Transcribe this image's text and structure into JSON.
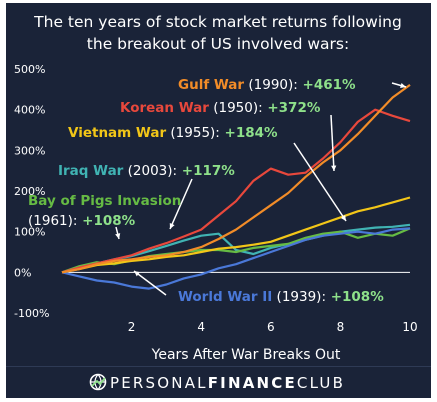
{
  "chart_data": {
    "type": "line",
    "title": "The ten years of stock market returns following the breakout of US involved wars:",
    "title_lines": [
      "The ten years of stock market returns following",
      "the breakout of US involved wars:"
    ],
    "xlabel": "Years After War Breaks Out",
    "ylabel": "",
    "xlim": [
      0,
      10
    ],
    "ylim": [
      -100,
      500
    ],
    "x_ticks": [
      2,
      4,
      6,
      8,
      10
    ],
    "x_tick_labels": [
      "2",
      "4",
      "6",
      "8",
      "10"
    ],
    "y_ticks": [
      -100,
      0,
      100,
      200,
      300,
      400,
      500
    ],
    "y_tick_labels": [
      "-100%",
      "0%",
      "100%",
      "200%",
      "300%",
      "400%",
      "500%"
    ],
    "grid": false,
    "legend": "none (series labelled directly on the chart)",
    "series": [
      {
        "name": "Gulf War",
        "year": "(1990):",
        "return": "+461%",
        "color": "#f28c28",
        "x": [
          0,
          0.5,
          1,
          1.5,
          2,
          2.5,
          3,
          3.5,
          4,
          4.5,
          5,
          5.5,
          6,
          6.5,
          7,
          7.5,
          8,
          8.5,
          9,
          9.5,
          10
        ],
        "y": [
          0,
          8,
          20,
          28,
          32,
          38,
          42,
          50,
          62,
          82,
          105,
          135,
          165,
          195,
          235,
          270,
          300,
          340,
          385,
          430,
          461
        ]
      },
      {
        "name": "Korean War",
        "year": "(1950):",
        "return": "+372%",
        "color": "#e8483c",
        "x": [
          0,
          0.5,
          1,
          1.5,
          2,
          2.5,
          3,
          3.5,
          4,
          4.5,
          5,
          5.5,
          6,
          6.5,
          7,
          7.5,
          8,
          8.5,
          9,
          9.5,
          10
        ],
        "y": [
          0,
          12,
          22,
          32,
          42,
          58,
          72,
          88,
          105,
          140,
          175,
          225,
          255,
          240,
          245,
          280,
          320,
          370,
          400,
          385,
          372
        ]
      },
      {
        "name": "Vietnam War",
        "year": "(1955):",
        "return": "+184%",
        "color": "#f2c618",
        "x": [
          0,
          0.5,
          1,
          1.5,
          2,
          2.5,
          3,
          3.5,
          4,
          4.5,
          5,
          5.5,
          6,
          6.5,
          7,
          7.5,
          8,
          8.5,
          9,
          9.5,
          10
        ],
        "y": [
          0,
          8,
          18,
          22,
          28,
          32,
          38,
          42,
          50,
          58,
          62,
          68,
          75,
          90,
          105,
          120,
          135,
          150,
          160,
          172,
          184
        ]
      },
      {
        "name": "Iraq War",
        "year": "(2003):",
        "return": "+117%",
        "color": "#40b3b3",
        "x": [
          0,
          0.5,
          1,
          1.5,
          2,
          2.5,
          3,
          3.5,
          4,
          4.5,
          5,
          5.5,
          6,
          6.5,
          7,
          7.5,
          8,
          8.5,
          9,
          9.5,
          10
        ],
        "y": [
          0,
          10,
          22,
          32,
          40,
          52,
          65,
          78,
          90,
          95,
          55,
          45,
          60,
          70,
          80,
          90,
          100,
          105,
          110,
          112,
          117
        ]
      },
      {
        "name": "Bay of Pigs Invasion",
        "year": "(1961):",
        "return": "+108%",
        "color": "#66bb44",
        "x": [
          0,
          0.5,
          1,
          1.5,
          2,
          2.5,
          3,
          3.5,
          4,
          4.5,
          5,
          5.5,
          6,
          6.5,
          7,
          7.5,
          8,
          8.5,
          9,
          9.5,
          10
        ],
        "y": [
          0,
          15,
          25,
          20,
          30,
          40,
          45,
          50,
          55,
          55,
          50,
          60,
          65,
          70,
          85,
          95,
          100,
          85,
          95,
          90,
          108
        ]
      },
      {
        "name": "World War II",
        "year": "(1939):",
        "return": "+108%",
        "color": "#4a78d8",
        "x": [
          0,
          0.5,
          1,
          1.5,
          2,
          2.5,
          3,
          3.5,
          4,
          4.5,
          5,
          5.5,
          6,
          6.5,
          7,
          7.5,
          8,
          8.5,
          9,
          9.5,
          10
        ],
        "y": [
          0,
          -10,
          -20,
          -25,
          -35,
          -40,
          -30,
          -15,
          -5,
          10,
          20,
          35,
          50,
          65,
          80,
          90,
          95,
          100,
          95,
          105,
          108
        ]
      }
    ]
  },
  "footer": {
    "brand_light": "PERSONAL",
    "brand_bold": "FINANCE",
    "brand_end": "CLUB",
    "logo_icon": "globe-logo-icon"
  },
  "colors": {
    "background": "#1a2338",
    "text": "#ffffff",
    "return_highlight": "#8ee08a"
  }
}
